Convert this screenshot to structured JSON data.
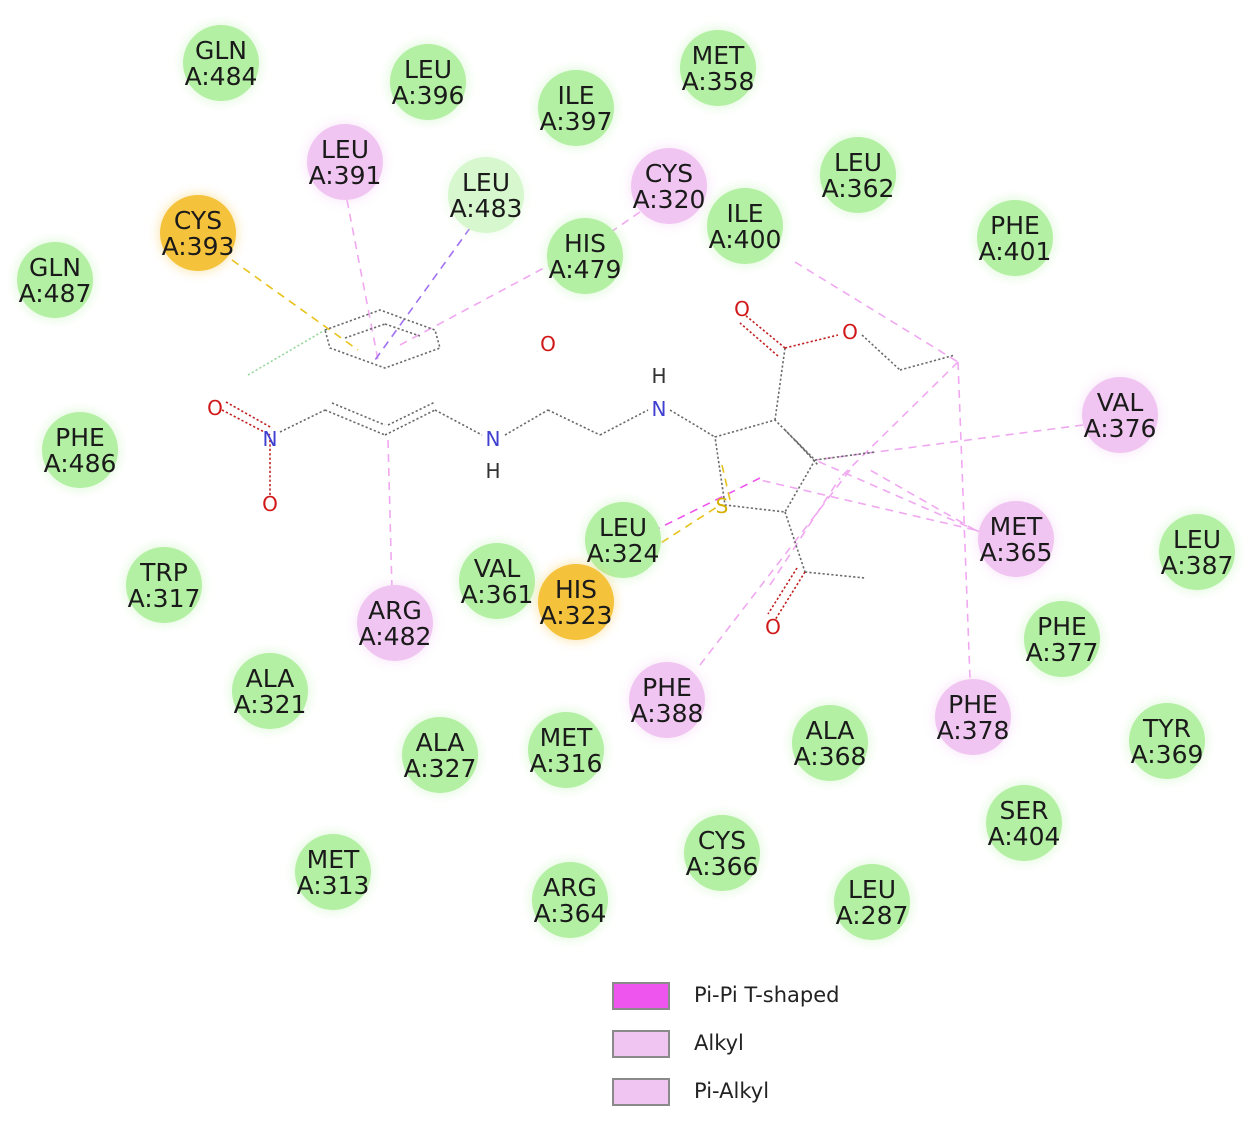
{
  "colors": {
    "vdw": "#b3f0a3",
    "alkyl": "#f1c5f1",
    "sulfur": "#f5c23c",
    "carbon_hbond": "#d7f7cf",
    "pi_pi_tshaped": "#ee55ee",
    "alkyl_line": "#f0a8f0",
    "sulfur_line": "#e8c31c",
    "pi_sigma_line": "#a070f0",
    "bond": "#6a6a6a",
    "oxygen": "#d01818",
    "nitrogen": "#4040d0",
    "sulfur_atom": "#d4b000"
  },
  "residues": [
    {
      "name": "GLN",
      "id": "A:484",
      "type": "vdw"
    },
    {
      "name": "LEU",
      "id": "A:396",
      "type": "vdw"
    },
    {
      "name": "ILE",
      "id": "A:397",
      "type": "vdw"
    },
    {
      "name": "MET",
      "id": "A:358",
      "type": "vdw"
    },
    {
      "name": "LEU",
      "id": "A:391",
      "type": "alkyl"
    },
    {
      "name": "LEU",
      "id": "A:483",
      "type": "carbon_hbond"
    },
    {
      "name": "CYS",
      "id": "A:320",
      "type": "alkyl"
    },
    {
      "name": "LEU",
      "id": "A:362",
      "type": "vdw"
    },
    {
      "name": "CYS",
      "id": "A:393",
      "type": "sulfur"
    },
    {
      "name": "HIS",
      "id": "A:479",
      "type": "vdw"
    },
    {
      "name": "ILE",
      "id": "A:400",
      "type": "vdw"
    },
    {
      "name": "PHE",
      "id": "A:401",
      "type": "vdw"
    },
    {
      "name": "GLN",
      "id": "A:487",
      "type": "vdw"
    },
    {
      "name": "VAL",
      "id": "A:376",
      "type": "alkyl"
    },
    {
      "name": "PHE",
      "id": "A:486",
      "type": "vdw"
    },
    {
      "name": "LEU",
      "id": "A:324",
      "type": "vdw"
    },
    {
      "name": "MET",
      "id": "A:365",
      "type": "alkyl"
    },
    {
      "name": "LEU",
      "id": "A:387",
      "type": "vdw"
    },
    {
      "name": "TRP",
      "id": "A:317",
      "type": "vdw"
    },
    {
      "name": "VAL",
      "id": "A:361",
      "type": "vdw"
    },
    {
      "name": "HIS",
      "id": "A:323",
      "type": "sulfur"
    },
    {
      "name": "ARG",
      "id": "A:482",
      "type": "alkyl"
    },
    {
      "name": "PHE",
      "id": "A:377",
      "type": "vdw"
    },
    {
      "name": "ALA",
      "id": "A:321",
      "type": "vdw"
    },
    {
      "name": "PHE",
      "id": "A:388",
      "type": "alkyl"
    },
    {
      "name": "PHE",
      "id": "A:378",
      "type": "alkyl"
    },
    {
      "name": "TYR",
      "id": "A:369",
      "type": "vdw"
    },
    {
      "name": "ALA",
      "id": "A:327",
      "type": "vdw"
    },
    {
      "name": "MET",
      "id": "A:316",
      "type": "vdw"
    },
    {
      "name": "ALA",
      "id": "A:368",
      "type": "vdw"
    },
    {
      "name": "SER",
      "id": "A:404",
      "type": "vdw"
    },
    {
      "name": "CYS",
      "id": "A:366",
      "type": "vdw"
    },
    {
      "name": "MET",
      "id": "A:313",
      "type": "vdw"
    },
    {
      "name": "ARG",
      "id": "A:364",
      "type": "vdw"
    },
    {
      "name": "LEU",
      "id": "A:287",
      "type": "vdw"
    }
  ],
  "atoms": [
    {
      "symbol": "O",
      "kind": "oxygen"
    },
    {
      "symbol": "O",
      "kind": "oxygen"
    },
    {
      "symbol": "O",
      "kind": "oxygen"
    },
    {
      "symbol": "N",
      "kind": "nitrogen"
    },
    {
      "symbol": "O",
      "kind": "oxygen"
    },
    {
      "symbol": "N",
      "kind": "nitrogen"
    },
    {
      "symbol": "H",
      "kind": "hydrogen"
    },
    {
      "symbol": "N",
      "kind": "nitrogen"
    },
    {
      "symbol": "H",
      "kind": "hydrogen"
    },
    {
      "symbol": "S",
      "kind": "sulfur_atom"
    },
    {
      "symbol": "O",
      "kind": "oxygen"
    }
  ],
  "legend": [
    {
      "label": "Pi-Pi T-shaped",
      "color": "#ee55ee"
    },
    {
      "label": "Alkyl",
      "color": "#f1c5f1"
    },
    {
      "label": "Pi-Alkyl",
      "color": "#f1c5f1"
    }
  ]
}
